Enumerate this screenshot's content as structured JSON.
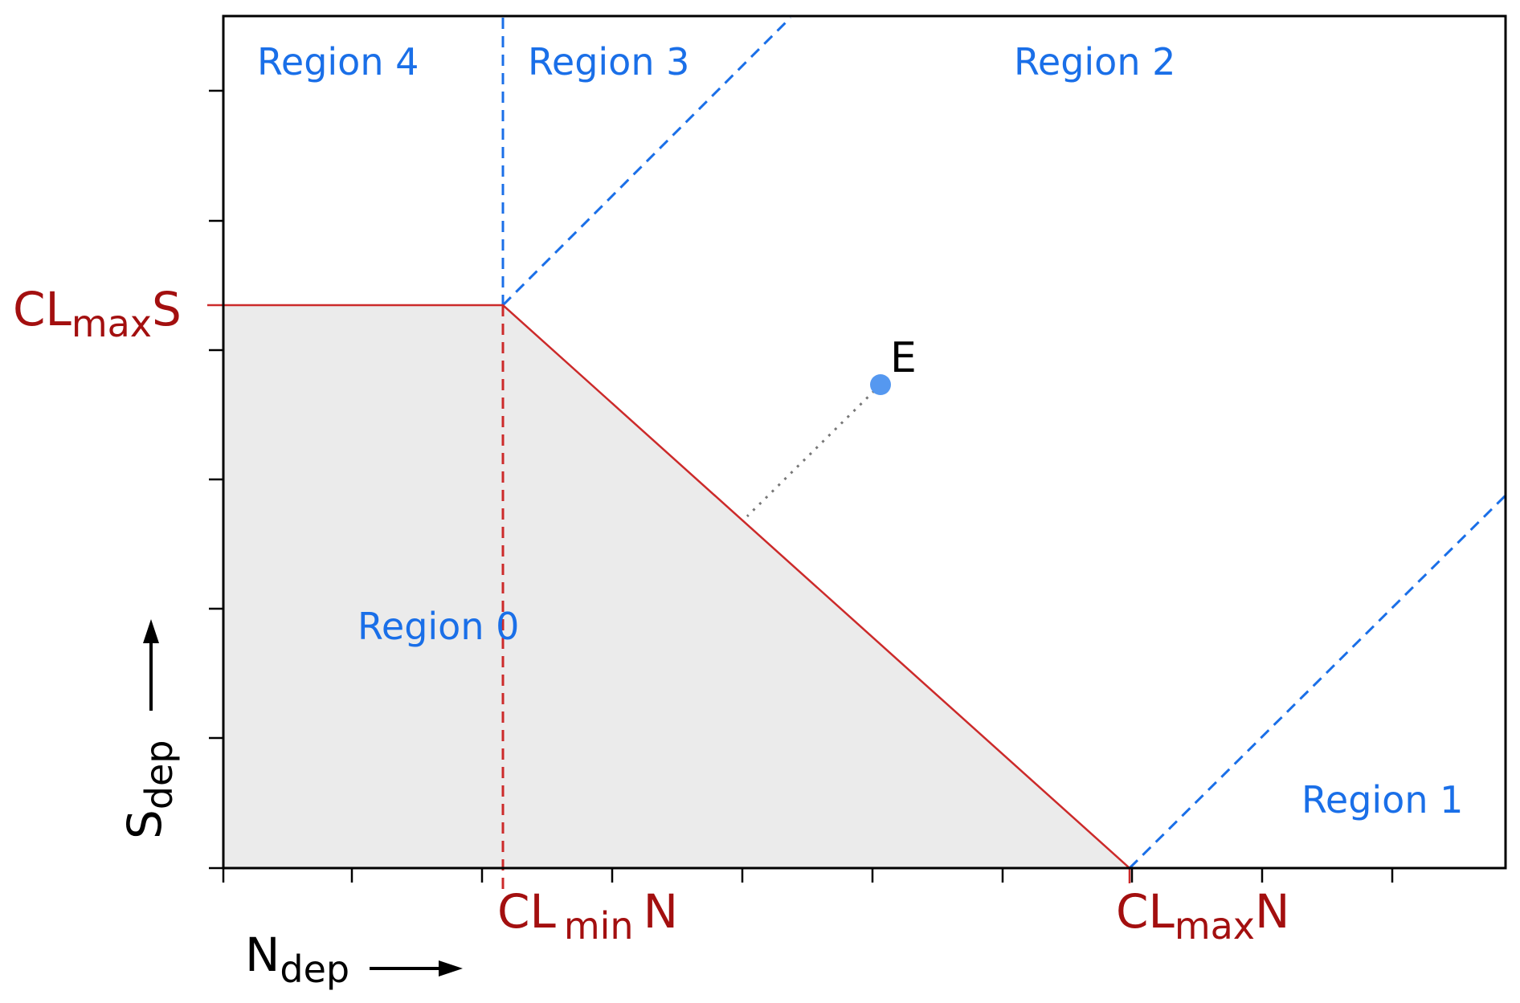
{
  "colors": {
    "region_label": "#1a6fe8",
    "threshold_label": "#a30f0f",
    "critical_load_line": "#cc2a2a",
    "boundary_dashed_blue": "#1a6fe8",
    "boundary_dashed_red": "#cc2a2a",
    "region0_fill": "#ebebeb",
    "point_e": "#5598f0",
    "distance_line": "#777777",
    "axis_text": "#000000"
  },
  "regions": {
    "r0": "Region 0",
    "r1": "Region 1",
    "r2": "Region 2",
    "r3": "Region 3",
    "r4": "Region 4"
  },
  "thresholds": {
    "clmaxs": {
      "main": "CL",
      "sub": "max",
      "tail": "S"
    },
    "clminn": {
      "main": "CL",
      "sub": "min",
      "tail": "N"
    },
    "clmaxn": {
      "main": "CL",
      "sub": "max",
      "tail": "N"
    }
  },
  "axes": {
    "x": {
      "main": "N",
      "sub": "dep",
      "arrow": "→"
    },
    "y": {
      "main": "S",
      "sub": "dep",
      "arrow": "→"
    }
  },
  "point": {
    "label": "E"
  },
  "icons": {
    "x_arrow": "arrow-right-icon",
    "y_arrow": "arrow-up-icon"
  }
}
